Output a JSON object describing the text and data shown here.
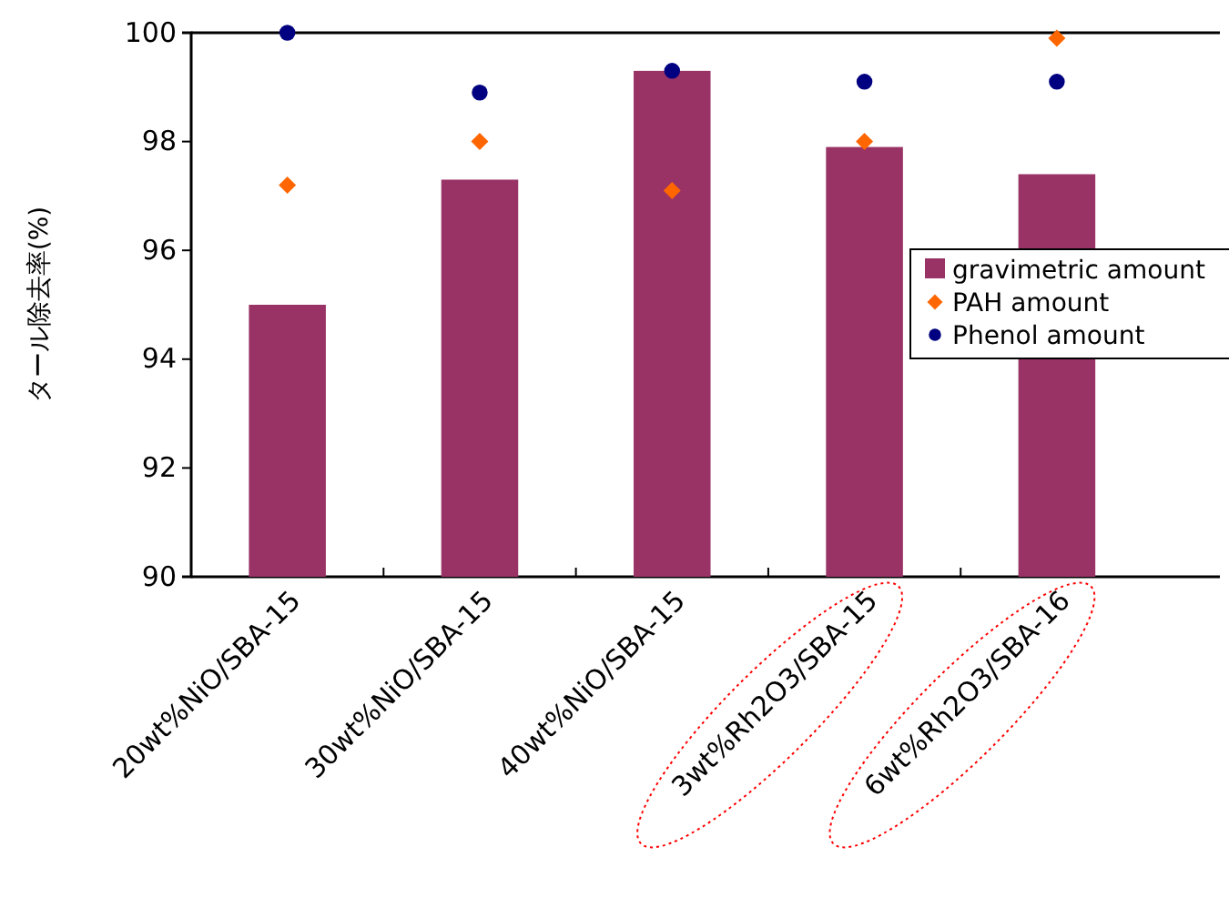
{
  "chart_data": {
    "type": "bar",
    "ylabel": "タール除去率(%)",
    "categories": [
      "20wt%NiO/SBA-15",
      "30wt%NiO/SBA-15",
      "40wt%NiO/SBA-15",
      "3wt%Rh2O3/SBA-15",
      "6wt%Rh2O3/SBA-16"
    ],
    "series": [
      {
        "name": "gravimetric amount",
        "color": "#993366",
        "values": [
          95.0,
          97.3,
          99.3,
          97.9,
          97.4
        ]
      },
      {
        "name": "PAH amount",
        "type": "scatter",
        "marker": "diamond",
        "color": "#ff6600",
        "values": [
          97.2,
          98.0,
          97.1,
          98.0,
          99.9
        ]
      },
      {
        "name": "Phenol amount",
        "type": "scatter",
        "marker": "circle",
        "color": "#000080",
        "values": [
          100.0,
          98.9,
          99.3,
          99.1,
          99.1
        ]
      }
    ],
    "ylim": [
      90,
      100
    ],
    "yticks": [
      90,
      92,
      94,
      96,
      98,
      100
    ],
    "grid": false,
    "legend": "right"
  }
}
